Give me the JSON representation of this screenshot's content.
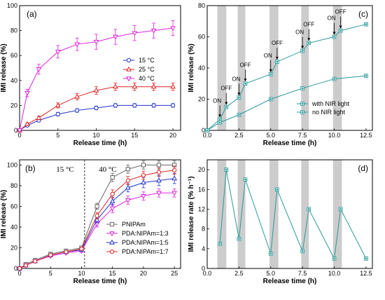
{
  "chart_data": [
    {
      "panel": "(a)",
      "type": "line",
      "xlabel": "Release time (h)",
      "ylabel": "IMI release (%)",
      "xlim": [
        0,
        21
      ],
      "ylim": [
        0,
        100
      ],
      "xticks": [
        0,
        5,
        10,
        15,
        20
      ],
      "yticks": [
        0,
        20,
        40,
        60,
        80,
        100
      ],
      "legend_position": "center-right",
      "series": [
        {
          "name": "15 °C",
          "color": "#2233cc",
          "marker": "circle",
          "x": [
            0,
            1,
            2.5,
            5,
            7.5,
            10,
            12.5,
            15,
            17.5,
            20
          ],
          "y": [
            0,
            4,
            8,
            13,
            16,
            18,
            20,
            20,
            20,
            20
          ],
          "err": [
            0,
            1,
            1,
            1.5,
            1.5,
            1.5,
            1.5,
            1.5,
            1.5,
            1.5
          ]
        },
        {
          "name": "25 °C",
          "color": "#dd2222",
          "marker": "triangle",
          "x": [
            0,
            1,
            2.5,
            5,
            7.5,
            10,
            12.5,
            15,
            17.5,
            20
          ],
          "y": [
            0,
            5,
            10,
            20,
            27,
            32,
            35,
            35,
            35,
            35
          ],
          "err": [
            0,
            1,
            1.5,
            2,
            2.5,
            3,
            3,
            3,
            3,
            3
          ]
        },
        {
          "name": "40 °C",
          "color": "#dd22dd",
          "marker": "triangle-down",
          "x": [
            0,
            1,
            2.5,
            5,
            7.5,
            10,
            12.5,
            15,
            17.5,
            20
          ],
          "y": [
            0,
            30,
            49,
            63,
            69,
            71,
            75,
            78,
            80,
            82
          ],
          "err": [
            0,
            3,
            4,
            5,
            5,
            6,
            6,
            6,
            6,
            6
          ]
        }
      ]
    },
    {
      "panel": "(b)",
      "type": "line",
      "xlabel": "Release time (h)",
      "ylabel": "IMI release (%)",
      "xlim": [
        0,
        26
      ],
      "ylim": [
        0,
        105
      ],
      "xticks": [
        0,
        5,
        10,
        15,
        20,
        25
      ],
      "yticks": [
        0,
        20,
        40,
        60,
        80,
        100
      ],
      "divider_x": 10.5,
      "phase_labels": [
        "15 °C",
        "40 °C"
      ],
      "legend_position": "bottom-right",
      "series": [
        {
          "name": "PNIPAm",
          "color": "#666666",
          "marker": "square",
          "x": [
            0,
            1,
            2.5,
            5,
            7.5,
            10,
            12.5,
            15,
            17.5,
            20,
            22.5,
            25
          ],
          "y": [
            0,
            4,
            8,
            14,
            17,
            20,
            60,
            88,
            96,
            100,
            100,
            100
          ],
          "err": [
            0,
            1,
            1,
            1,
            1,
            1.5,
            3,
            4,
            4,
            4,
            4,
            4
          ]
        },
        {
          "name": "PDA:NIPAm=1:3",
          "color": "#dd22dd",
          "marker": "triangle-down",
          "x": [
            0,
            1,
            2.5,
            5,
            7.5,
            10,
            12.5,
            15,
            17.5,
            20,
            22.5,
            25
          ],
          "y": [
            0,
            3,
            7,
            12,
            15,
            17,
            43,
            58,
            66,
            70,
            73,
            73
          ],
          "err": [
            0,
            1,
            1,
            1,
            1,
            1.5,
            3,
            4,
            4,
            4,
            4,
            4
          ]
        },
        {
          "name": "PDA:NIPAm=1:5",
          "color": "#2233cc",
          "marker": "triangle",
          "x": [
            0,
            1,
            2.5,
            5,
            7.5,
            10,
            12.5,
            15,
            17.5,
            20,
            22.5,
            25
          ],
          "y": [
            0,
            3,
            7,
            13,
            16,
            18,
            47,
            65,
            78,
            83,
            85,
            87
          ],
          "err": [
            0,
            1,
            1,
            1,
            1,
            1.5,
            3,
            4,
            4,
            5,
            5,
            5
          ]
        },
        {
          "name": "PDA:NIPAm=1:7",
          "color": "#dd2222",
          "marker": "circle",
          "x": [
            0,
            1,
            2.5,
            5,
            7.5,
            10,
            12.5,
            15,
            17.5,
            20,
            22.5,
            25
          ],
          "y": [
            0,
            3,
            7,
            13,
            16,
            19,
            51,
            72,
            85,
            90,
            93,
            95
          ],
          "err": [
            0,
            1,
            1,
            1,
            1,
            1.5,
            3,
            4,
            4,
            4,
            4,
            4
          ]
        }
      ]
    },
    {
      "panel": "(c)",
      "type": "line",
      "xlabel": "Release time (h)",
      "ylabel": "IMI release (%)",
      "xlim": [
        0,
        13
      ],
      "ylim": [
        0,
        80
      ],
      "xticks": [
        0.0,
        2.5,
        5.0,
        7.5,
        10.0,
        12.5
      ],
      "yticks": [
        0,
        20,
        40,
        60,
        80
      ],
      "shaded_intervals": [
        [
          0.8,
          1.5
        ],
        [
          2.4,
          3.0
        ],
        [
          4.9,
          5.6
        ],
        [
          7.4,
          8.0
        ],
        [
          9.9,
          10.6
        ]
      ],
      "legend_position": "bottom-right",
      "annotations": [
        {
          "text": "ON",
          "x": 1.0,
          "y": 7
        },
        {
          "text": "OFF",
          "x": 1.5,
          "y": 15
        },
        {
          "text": "ON",
          "x": 2.5,
          "y": 21
        },
        {
          "text": "OFF",
          "x": 3.0,
          "y": 30
        },
        {
          "text": "ON",
          "x": 5.0,
          "y": 36
        },
        {
          "text": "OFF",
          "x": 5.5,
          "y": 44
        },
        {
          "text": "ON",
          "x": 7.5,
          "y": 51
        },
        {
          "text": "OFF",
          "x": 8.0,
          "y": 56
        },
        {
          "text": "ON",
          "x": 10.0,
          "y": 60
        },
        {
          "text": "OFF",
          "x": 10.5,
          "y": 64
        }
      ],
      "series": [
        {
          "name": "with NIR light",
          "color": "#2a9a9a",
          "marker": "square",
          "x": [
            0,
            1,
            1.5,
            2.5,
            3,
            5,
            5.5,
            7.5,
            8,
            10,
            10.5,
            12.5
          ],
          "y": [
            0,
            7,
            15,
            21,
            30,
            36,
            44,
            51,
            56,
            60,
            64,
            68
          ]
        },
        {
          "name": "no NIR light",
          "color": "#2a9a9a",
          "marker": "square",
          "x": [
            0,
            1,
            2.5,
            5,
            7.5,
            10,
            12.5
          ],
          "y": [
            0,
            5,
            10,
            20,
            27,
            33,
            35
          ]
        }
      ]
    },
    {
      "panel": "(d)",
      "type": "line",
      "xlabel": "Release time (h)",
      "ylabel": "IMI release rate (% h⁻¹)",
      "xlim": [
        0,
        13
      ],
      "ylim": [
        0,
        22
      ],
      "xticks": [
        0.0,
        2.5,
        5.0,
        7.5,
        10.0,
        12.5
      ],
      "yticks": [
        0,
        4,
        8,
        12,
        16,
        20
      ],
      "shaded_intervals": [
        [
          0.8,
          1.5
        ],
        [
          2.4,
          3.0
        ],
        [
          4.9,
          5.6
        ],
        [
          7.4,
          8.0
        ],
        [
          9.9,
          10.6
        ]
      ],
      "series": [
        {
          "name": "",
          "color": "#2a9a9a",
          "marker": "square",
          "x": [
            1,
            1.5,
            2.5,
            3,
            5,
            5.5,
            7.5,
            8,
            10,
            10.5,
            12.5
          ],
          "y": [
            5,
            20,
            6,
            18,
            3,
            16,
            3.5,
            12,
            2,
            12,
            2
          ]
        }
      ]
    }
  ]
}
